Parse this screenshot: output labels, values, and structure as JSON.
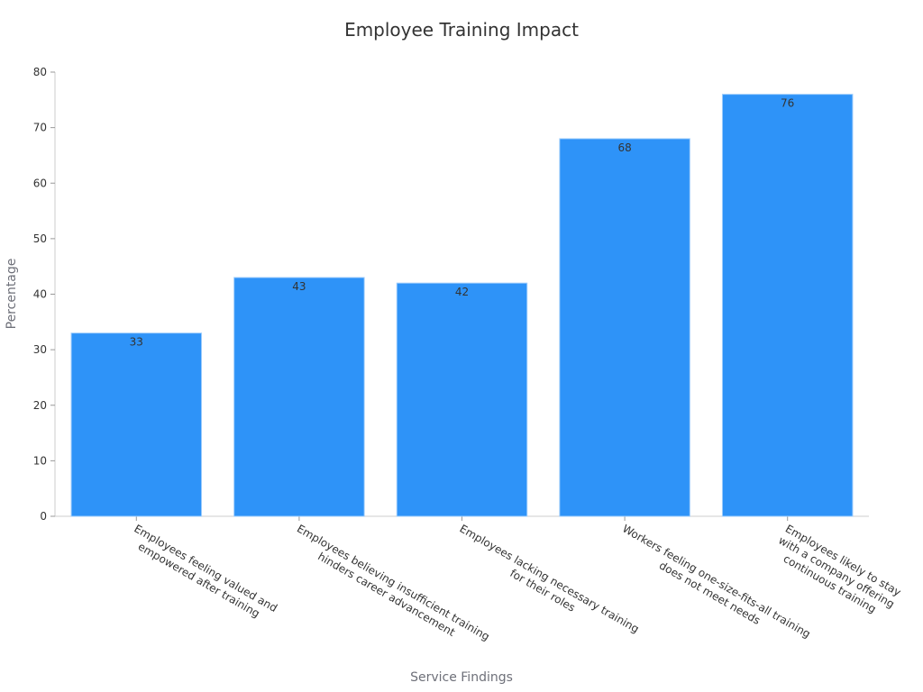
{
  "chart_data": {
    "type": "bar",
    "title": "Employee Training Impact",
    "xlabel": "Service Findings",
    "ylabel": "Percentage",
    "ylim": [
      0,
      80
    ],
    "yticks": [
      0,
      10,
      20,
      30,
      40,
      50,
      60,
      70,
      80
    ],
    "grid": false,
    "categories": [
      "Employees feeling valued and empowered after training",
      "Employees believing insufficient training hinders career advancement",
      "Employees lacking necessary training for their roles",
      "Workers feeling one-size-fits-all training does not meet needs",
      "Employees likely to stay with a company offering continuous training"
    ],
    "category_label_lines": [
      [
        "Employees feeling valued and",
        "empowered after training"
      ],
      [
        "Employees believing insufficient training",
        "hinders career advancement"
      ],
      [
        "Employees lacking necessary training",
        "for their roles"
      ],
      [
        "Workers feeling one-size-fits-all training",
        "does not meet needs"
      ],
      [
        "Employees likely to stay",
        "with a company offering",
        "continuous training"
      ]
    ],
    "values": [
      33,
      43,
      42,
      68,
      76
    ],
    "bar_color": "#2e93f8"
  }
}
